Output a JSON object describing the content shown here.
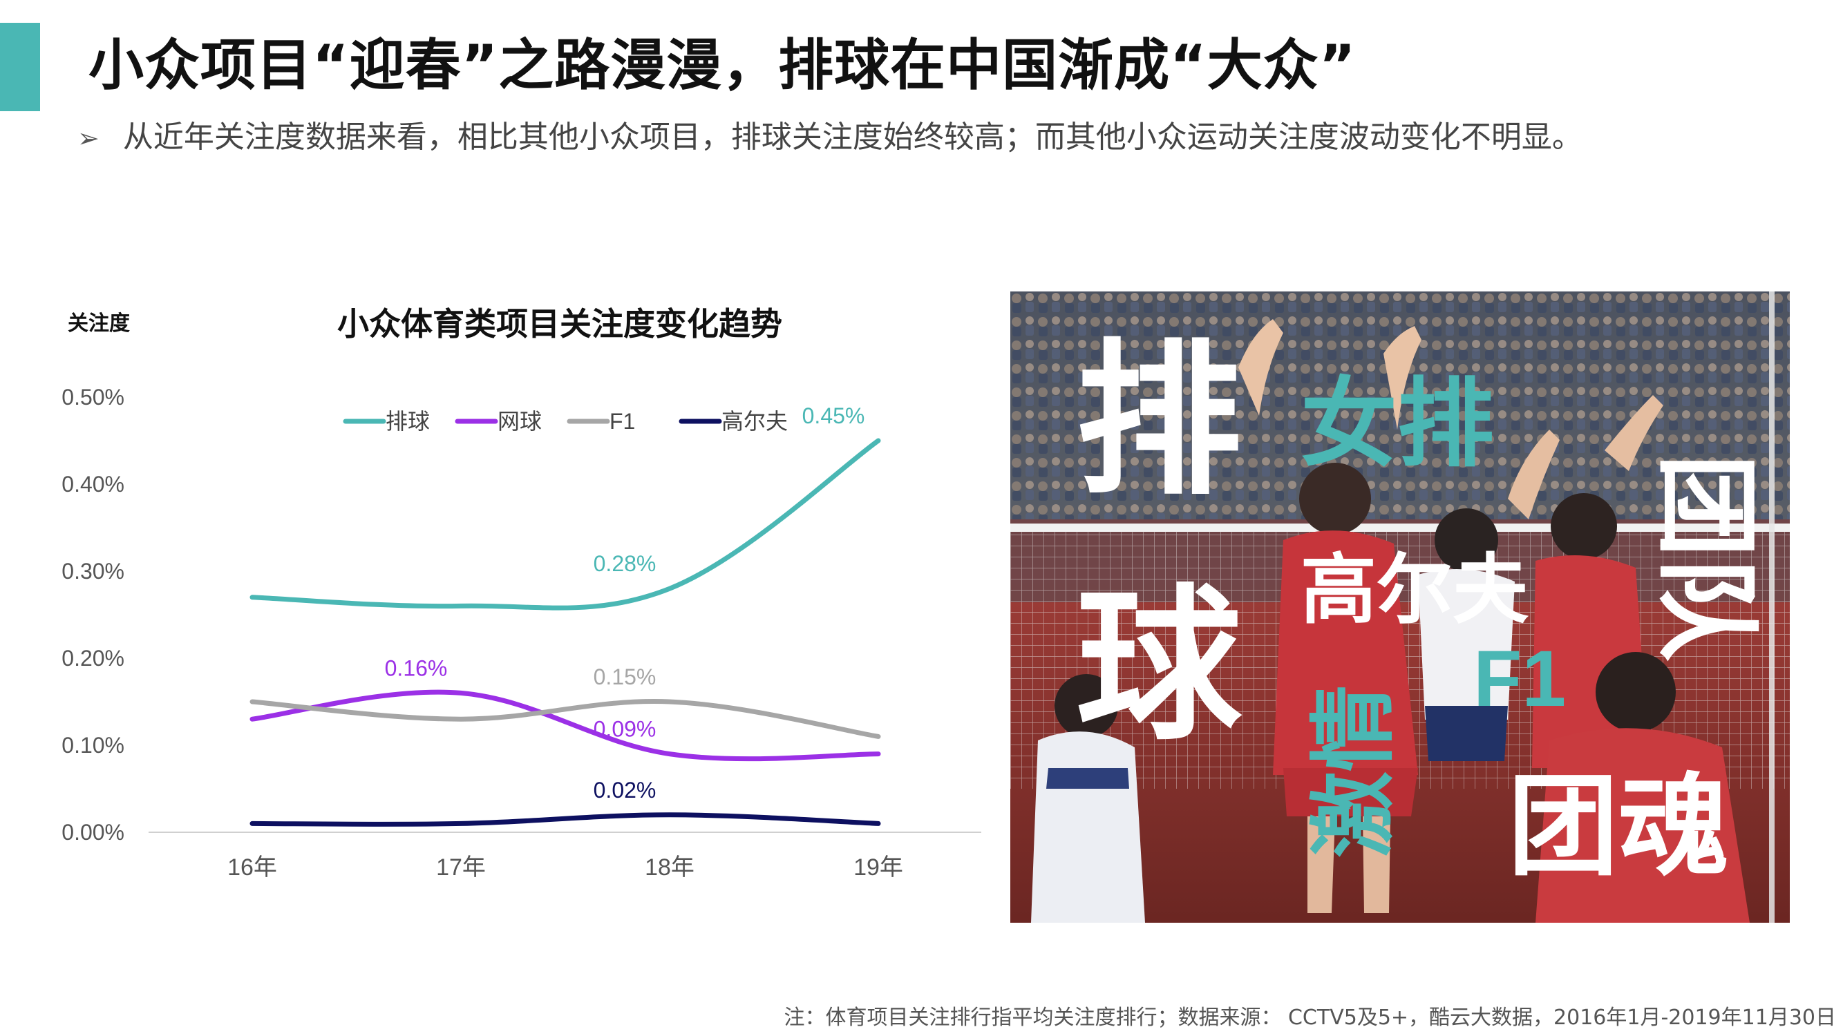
{
  "header": {
    "title": "小众项目“迎春”之路漫漫，排球在中国渐成“大众”",
    "bullet_symbol": "➢",
    "subtitle": "从近年关注度数据来看，相比其他小众项目，排球关注度始终较高；而其他小众运动关注度波动变化不明显。",
    "accent_color": "#4ab7b4"
  },
  "chart_data": {
    "type": "line",
    "title": "小众体育类项目关注度变化趋势",
    "ylabel": "关注度",
    "xlabel": "",
    "categories": [
      "16年",
      "17年",
      "18年",
      "19年"
    ],
    "ylim": [
      0,
      0.5
    ],
    "yticks": [
      "0.00%",
      "0.10%",
      "0.20%",
      "0.30%",
      "0.40%",
      "0.50%"
    ],
    "legend_position": "top",
    "grid": false,
    "smooth": true,
    "series": [
      {
        "name": "排球",
        "color": "#4ab7b4",
        "values": [
          0.27,
          0.26,
          0.28,
          0.45
        ],
        "data_labels": [
          {
            "index": 2,
            "text": "0.28%"
          },
          {
            "index": 3,
            "text": "0.45%"
          }
        ]
      },
      {
        "name": "网球",
        "color": "#9b30e6",
        "values": [
          0.13,
          0.16,
          0.09,
          0.09
        ],
        "data_labels": [
          {
            "index": 1,
            "text": "0.16%"
          },
          {
            "index": 2,
            "text": "0.09%"
          }
        ]
      },
      {
        "name": "F1",
        "color": "#a6a6a6",
        "values": [
          0.15,
          0.13,
          0.15,
          0.11
        ],
        "data_labels": [
          {
            "index": 2,
            "text": "0.15%"
          }
        ]
      },
      {
        "name": "高尔夫",
        "color": "#0d1060",
        "values": [
          0.01,
          0.01,
          0.02,
          0.01
        ],
        "data_labels": [
          {
            "index": 2,
            "text": "0.02%"
          }
        ]
      }
    ]
  },
  "photo": {
    "words": {
      "pai": "排",
      "qiu": "球",
      "nvpai": "女排",
      "gaoerfu": "高尔夫",
      "tuandui": "团队",
      "f1": "F1",
      "jiqing": "激情",
      "tuanhun": "团魂"
    },
    "teal": "#4ab7b4",
    "white": "#ffffff"
  },
  "footnote": "注：体育项目关注排行指平均关注度排行；数据来源： CCTV5及5+，酷云大数据，2016年1月-2019年11月30日"
}
